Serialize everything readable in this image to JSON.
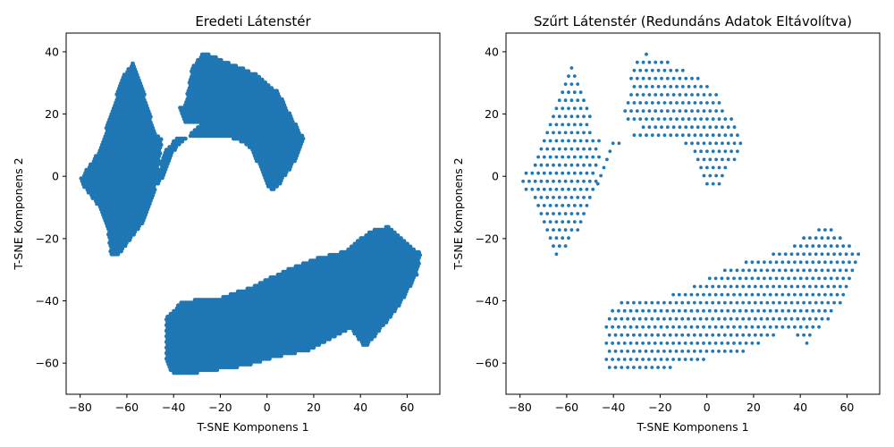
{
  "figure": {
    "panels": [
      {
        "title": "Eredeti Látenstér",
        "xlabel": "T-SNE Komponens 1",
        "ylabel": "T-SNE Komponens 2",
        "xticks": [
          "−80",
          "−60",
          "−40",
          "−20",
          "0",
          "20",
          "40",
          "60"
        ],
        "yticks": [
          "40",
          "20",
          "0",
          "−20",
          "−40",
          "−60"
        ]
      },
      {
        "title": "Szűrt Látenstér (Redundáns Adatok Eltávolítva)",
        "xlabel": "T-SNE Komponens 1",
        "ylabel": "T-SNE Komponens 2",
        "xticks": [
          "−80",
          "−60",
          "−40",
          "−20",
          "0",
          "20",
          "40",
          "60"
        ],
        "yticks": [
          "40",
          "20",
          "0",
          "−20",
          "−40",
          "−60"
        ]
      }
    ]
  },
  "chart_data": [
    {
      "type": "scatter",
      "title": "Eredeti Látenstér",
      "xlabel": "T-SNE Komponens 1",
      "ylabel": "T-SNE Komponens 2",
      "xlim": [
        -86,
        74
      ],
      "ylim": [
        -70,
        46
      ],
      "xticks": [
        -80,
        -60,
        -40,
        -20,
        0,
        20,
        40,
        60
      ],
      "yticks": [
        -60,
        -40,
        -20,
        0,
        20,
        40
      ],
      "grid": false,
      "marker_color": "#1f77b4",
      "density": "full",
      "clusters": [
        {
          "name": "left-fan",
          "outline": [
            [
              -80,
              -1
            ],
            [
              -72,
              8
            ],
            [
              -66,
              22
            ],
            [
              -62,
              32
            ],
            [
              -57,
              37
            ],
            [
              -54,
              30
            ],
            [
              -50,
              20
            ],
            [
              -48,
              14
            ],
            [
              -45,
              12
            ],
            [
              -46,
              5
            ],
            [
              -48,
              -5
            ],
            [
              -52,
              -14
            ],
            [
              -58,
              -20
            ],
            [
              -63,
              -25
            ],
            [
              -67,
              -25
            ],
            [
              -68,
              -18
            ],
            [
              -72,
              -10
            ],
            [
              -78,
              -4
            ]
          ]
        },
        {
          "name": "top-arc",
          "outline": [
            [
              -35,
              23
            ],
            [
              -32,
              35
            ],
            [
              -27,
              40
            ],
            [
              -18,
              37
            ],
            [
              -5,
              33
            ],
            [
              5,
              27
            ],
            [
              12,
              17
            ],
            [
              16,
              12
            ],
            [
              12,
              5
            ],
            [
              6,
              -2
            ],
            [
              2,
              -5
            ],
            [
              0,
              -3
            ],
            [
              -3,
              3
            ],
            [
              -8,
              10
            ],
            [
              -18,
              13
            ],
            [
              -28,
              13
            ],
            [
              -38,
              13
            ],
            [
              -44,
              8
            ],
            [
              -46,
              2
            ],
            [
              -48,
              -4
            ],
            [
              -44,
              0
            ],
            [
              -40,
              8
            ],
            [
              -35,
              12
            ],
            [
              -28,
              17
            ],
            [
              -35,
              17
            ],
            [
              -38,
              22
            ]
          ]
        },
        {
          "name": "bottom-band",
          "outline": [
            [
              -43,
              -45
            ],
            [
              -36,
              -40
            ],
            [
              -20,
              -39
            ],
            [
              -5,
              -35
            ],
            [
              8,
              -30
            ],
            [
              22,
              -26
            ],
            [
              28,
              -25
            ],
            [
              34,
              -24
            ],
            [
              40,
              -20
            ],
            [
              46,
              -17
            ],
            [
              52,
              -16
            ],
            [
              58,
              -20
            ],
            [
              66,
              -25
            ],
            [
              64,
              -32
            ],
            [
              58,
              -40
            ],
            [
              50,
              -48
            ],
            [
              42,
              -55
            ],
            [
              36,
              -49
            ],
            [
              28,
              -52
            ],
            [
              18,
              -56
            ],
            [
              5,
              -58
            ],
            [
              -10,
              -61
            ],
            [
              -28,
              -63
            ],
            [
              -40,
              -64
            ],
            [
              -43,
              -60
            ]
          ]
        }
      ]
    },
    {
      "type": "scatter",
      "title": "Szűrt Látenstér (Redundáns Adatok Eltávolítva)",
      "xlabel": "T-SNE Komponens 1",
      "ylabel": "T-SNE Komponens 2",
      "xlim": [
        -86,
        74
      ],
      "ylim": [
        -70,
        46
      ],
      "xticks": [
        -80,
        -60,
        -40,
        -20,
        0,
        20,
        40,
        60
      ],
      "yticks": [
        -60,
        -40,
        -20,
        0,
        20,
        40
      ],
      "grid": false,
      "marker_color": "#1f77b4",
      "density": "sparse",
      "clusters": [
        {
          "name": "left-fan",
          "outline": [
            [
              -80,
              -1
            ],
            [
              -72,
              8
            ],
            [
              -66,
              22
            ],
            [
              -62,
              32
            ],
            [
              -57,
              37
            ],
            [
              -54,
              30
            ],
            [
              -50,
              20
            ],
            [
              -48,
              14
            ],
            [
              -45,
              12
            ],
            [
              -46,
              5
            ],
            [
              -48,
              -5
            ],
            [
              -52,
              -14
            ],
            [
              -58,
              -20
            ],
            [
              -63,
              -25
            ],
            [
              -67,
              -25
            ],
            [
              -68,
              -18
            ],
            [
              -72,
              -10
            ],
            [
              -78,
              -4
            ]
          ]
        },
        {
          "name": "top-arc",
          "outline": [
            [
              -35,
              23
            ],
            [
              -32,
              35
            ],
            [
              -27,
              40
            ],
            [
              -18,
              37
            ],
            [
              -5,
              33
            ],
            [
              5,
              27
            ],
            [
              12,
              17
            ],
            [
              16,
              12
            ],
            [
              12,
              5
            ],
            [
              6,
              -2
            ],
            [
              2,
              -5
            ],
            [
              0,
              -3
            ],
            [
              -3,
              3
            ],
            [
              -8,
              10
            ],
            [
              -18,
              13
            ],
            [
              -28,
              13
            ],
            [
              -38,
              13
            ],
            [
              -44,
              8
            ],
            [
              -46,
              2
            ],
            [
              -48,
              -4
            ],
            [
              -44,
              0
            ],
            [
              -40,
              8
            ],
            [
              -35,
              12
            ],
            [
              -28,
              17
            ],
            [
              -35,
              17
            ],
            [
              -38,
              22
            ]
          ]
        },
        {
          "name": "bottom-band",
          "outline": [
            [
              -43,
              -45
            ],
            [
              -36,
              -40
            ],
            [
              -20,
              -39
            ],
            [
              -5,
              -35
            ],
            [
              8,
              -30
            ],
            [
              22,
              -26
            ],
            [
              28,
              -25
            ],
            [
              34,
              -24
            ],
            [
              40,
              -20
            ],
            [
              46,
              -17
            ],
            [
              52,
              -16
            ],
            [
              58,
              -20
            ],
            [
              66,
              -25
            ],
            [
              64,
              -32
            ],
            [
              58,
              -40
            ],
            [
              50,
              -48
            ],
            [
              42,
              -55
            ],
            [
              36,
              -49
            ],
            [
              28,
              -52
            ],
            [
              18,
              -56
            ],
            [
              5,
              -58
            ],
            [
              -10,
              -61
            ],
            [
              -28,
              -63
            ],
            [
              -40,
              -64
            ],
            [
              -43,
              -60
            ]
          ]
        }
      ]
    }
  ]
}
